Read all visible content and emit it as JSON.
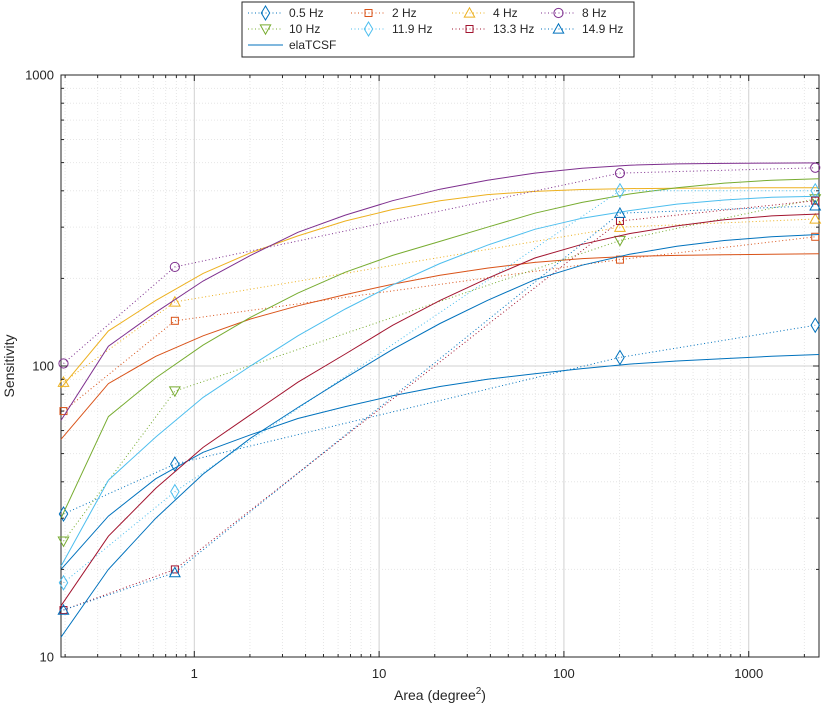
{
  "chart_data": {
    "type": "line",
    "xscale": "log",
    "yscale": "log",
    "xlabel": "Area (degree",
    "xlabel_superscript": "2",
    "xlabel_suffix": ")",
    "ylabel": "Sensitivity",
    "xlim": [
      0.19,
      2400
    ],
    "ylim": [
      10,
      1000
    ],
    "x_ticks": [
      {
        "value": 1,
        "label": "1"
      },
      {
        "value": 10,
        "label": "10"
      },
      {
        "value": 100,
        "label": "100"
      },
      {
        "value": 1000,
        "label": "1000"
      }
    ],
    "y_ticks": [
      {
        "value": 10,
        "label": "10"
      },
      {
        "value": 100,
        "label": "100"
      },
      {
        "value": 1000,
        "label": "1000"
      }
    ],
    "grid": true,
    "minor_grid": true,
    "legend_position": "top-center, outside plot",
    "measured_x": [
      0.196,
      0.785,
      201,
      2290
    ],
    "series": [
      {
        "name": "0.5 Hz",
        "color": "#0072bd",
        "marker": "diamond",
        "measured": [
          31,
          46,
          107,
          138
        ],
        "model": [
          20,
          30.5,
          41,
          50.5,
          58,
          66,
          72.5,
          79,
          85,
          90,
          94,
          98,
          101.5,
          104,
          106,
          108,
          109.5
        ]
      },
      {
        "name": "2 Hz",
        "color": "#d95319",
        "marker": "square",
        "measured": [
          70,
          143,
          232,
          278
        ],
        "model": [
          56,
          87,
          108,
          127,
          145,
          161,
          176,
          191,
          205,
          217,
          227,
          234,
          238,
          240,
          241,
          242,
          243
        ]
      },
      {
        "name": "4 Hz",
        "color": "#edb120",
        "marker": "triangle-up",
        "measured": [
          88,
          166,
          300,
          320
        ],
        "model": [
          84,
          132,
          168,
          208,
          245,
          280,
          315,
          345,
          370,
          388,
          398,
          404,
          407,
          408,
          409,
          410,
          410
        ]
      },
      {
        "name": "8 Hz",
        "color": "#7e2f8e",
        "marker": "circle",
        "measured": [
          102,
          219,
          460,
          480
        ],
        "model": [
          65,
          117,
          153,
          196,
          240,
          288,
          330,
          370,
          405,
          435,
          460,
          478,
          490,
          495,
          497,
          498,
          499
        ]
      },
      {
        "name": "10 Hz",
        "color": "#77ac30",
        "marker": "triangle-down",
        "measured": [
          25,
          82,
          270,
          375
        ],
        "model": [
          30,
          67,
          91,
          118,
          147,
          178,
          210,
          240,
          268,
          300,
          335,
          365,
          390,
          410,
          425,
          435,
          440
        ]
      },
      {
        "name": "11.9 Hz",
        "color": "#4dbeee",
        "marker": "diamond",
        "measured": [
          18,
          37,
          400,
          400
        ],
        "model": [
          20.5,
          40.5,
          57,
          78,
          100,
          127,
          157,
          190,
          225,
          260,
          295,
          322,
          342,
          360,
          372,
          380,
          383
        ]
      },
      {
        "name": "13.3 Hz",
        "color": "#a2142f",
        "marker": "square",
        "measured": [
          14.5,
          20,
          315,
          370
        ],
        "model": [
          15,
          26,
          38,
          52.5,
          68,
          88,
          110,
          138,
          168,
          200,
          235,
          262,
          285,
          303,
          318,
          328,
          333
        ]
      },
      {
        "name": "14.9 Hz",
        "color": "#0072bd",
        "marker": "triangle-up",
        "measured": [
          14.5,
          19.5,
          335,
          355
        ],
        "model": [
          11.7,
          20,
          30,
          42.5,
          56.5,
          72,
          91,
          114,
          140,
          168,
          198,
          222,
          242,
          258,
          270,
          278,
          283
        ]
      }
    ],
    "model_legend_name": "elaTCSF",
    "model_legend_color": "#0072bd"
  }
}
